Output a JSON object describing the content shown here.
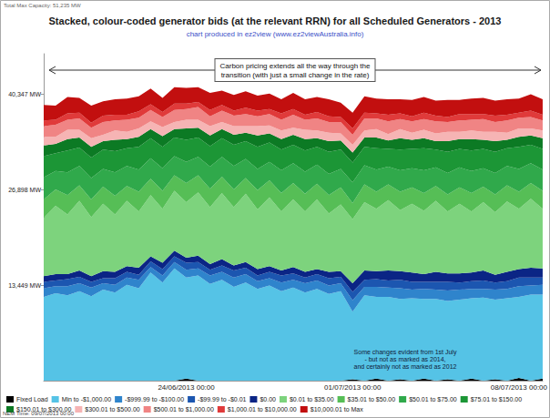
{
  "chart_data": {
    "type": "area",
    "title": "Stacked, colour-coded generator bids (at the relevant RRN) for all Scheduled Generators - 2013",
    "subtitle": "chart produced in ez2view (www.ez2viewAustralia.info)",
    "capacity_note": "Total Max Capacity: 51,235 MW",
    "carbon_note": "Carbon pricing extends all the way through the\ntransition (with just a small change in the rate)",
    "july_note": "Some changes evident from 1st July\n- but not as marked as 2014,\nand certainly not as marked as 2012",
    "time_note": "NEM Time: 09/07/2013 00:00",
    "stacked": true,
    "grid": false,
    "legend": "bottom",
    "ylim": [
      0,
      46000
    ],
    "yticks": [
      {
        "value": 13449,
        "label": "13,449 MW"
      },
      {
        "value": 26898,
        "label": "26,898 MW"
      },
      {
        "value": 40347,
        "label": "40,347 MW"
      }
    ],
    "categories": [
      null,
      null,
      null,
      null,
      null,
      null,
      null,
      null,
      null,
      null,
      null,
      null,
      "24/06/2013 00:00",
      null,
      null,
      null,
      null,
      null,
      null,
      null,
      null,
      null,
      null,
      null,
      null,
      null,
      "01/07/2013 00:00",
      null,
      null,
      null,
      null,
      null,
      null,
      null,
      null,
      null,
      null,
      null,
      null,
      null,
      "08/07/2013 00:00",
      null,
      null
    ],
    "series": [
      {
        "name": "Fixed Load",
        "color": "#000000",
        "values": [
          0,
          0,
          0,
          0,
          0,
          0,
          0,
          0,
          0,
          0,
          0,
          0,
          300,
          0,
          0,
          0,
          0,
          0,
          0,
          0,
          0,
          0,
          0,
          0,
          0,
          0,
          200,
          0,
          300,
          0,
          200,
          0,
          300,
          0,
          200,
          0,
          300,
          0,
          200,
          0,
          400,
          0,
          300
        ]
      },
      {
        "name": "Min to -$1,000.00",
        "color": "#55c3e6",
        "values": [
          11800,
          12300,
          12000,
          12600,
          11900,
          12800,
          12400,
          13500,
          13000,
          15200,
          13800,
          15800,
          14200,
          14800,
          13600,
          14200,
          13200,
          13800,
          12900,
          13400,
          12600,
          13100,
          12400,
          12900,
          12200,
          12600,
          9500,
          12000,
          11500,
          11800,
          11300,
          11600,
          11200,
          11500,
          11000,
          11400,
          11300,
          11700,
          11200,
          11600,
          11400,
          12100,
          11800
        ]
      },
      {
        "name": "-$999.99 to -$100.00",
        "color": "#2f84cc",
        "values": [
          1200,
          1000,
          1300,
          1100,
          1200,
          900,
          1100,
          1000,
          1200,
          800,
          1000,
          900,
          1100,
          1000,
          1200,
          1100,
          1300,
          1200,
          1100,
          1000,
          1200,
          1100,
          1300,
          1200,
          1200,
          1100,
          1600,
          1200,
          1400,
          1300,
          1500,
          1200,
          1400,
          1300,
          1500,
          1400,
          1300,
          1200,
          1400,
          1300,
          1500,
          1300,
          1400
        ]
      },
      {
        "name": "-$99.99 to -$0.01",
        "color": "#1c56b0",
        "values": [
          900,
          800,
          1000,
          900,
          800,
          700,
          900,
          800,
          700,
          800,
          900,
          800,
          1000,
          900,
          800,
          900,
          1000,
          900,
          800,
          900,
          1000,
          900,
          800,
          900,
          1000,
          900,
          1200,
          1000,
          1100,
          1000,
          1200,
          1100,
          1000,
          1100,
          1200,
          1000,
          1100,
          1200,
          1000,
          1100,
          1200,
          1100,
          1000
        ]
      },
      {
        "name": "$0.00",
        "color": "#0b2585",
        "values": [
          800,
          900,
          700,
          900,
          800,
          1000,
          900,
          800,
          1000,
          700,
          900,
          800,
          700,
          900,
          800,
          900,
          700,
          800,
          900,
          800,
          700,
          900,
          800,
          700,
          900,
          800,
          1200,
          1300,
          1100,
          1400,
          1200,
          1300,
          1100,
          1400,
          1200,
          1300,
          1200,
          1400,
          1100,
          1300,
          1200,
          1400,
          1300
        ]
      },
      {
        "name": "$0.01 to $35.00",
        "color": "#7dd37d",
        "values": [
          8200,
          9600,
          8400,
          9800,
          8300,
          9500,
          8100,
          9200,
          7900,
          8600,
          7600,
          8400,
          7800,
          8900,
          8000,
          9300,
          8200,
          9600,
          8400,
          9700,
          8300,
          9500,
          8500,
          9800,
          8200,
          9400,
          9000,
          9600,
          8800,
          9900,
          8600,
          9700,
          8900,
          10000,
          8700,
          9800,
          8600,
          9600,
          8800,
          9900,
          8500,
          9700,
          8400
        ]
      },
      {
        "name": "$35.01 to $50.00",
        "color": "#56be56",
        "values": [
          2600,
          2300,
          2700,
          2200,
          2500,
          2400,
          2600,
          2100,
          2800,
          2300,
          2500,
          2200,
          2700,
          2400,
          2600,
          2300,
          2500,
          2200,
          2700,
          2400,
          2600,
          2300,
          2500,
          2200,
          2600,
          2400,
          2300,
          2500,
          2400,
          2200,
          2600,
          2300,
          2500,
          2100,
          2400,
          2300,
          2600,
          2200,
          2500,
          2300,
          2400,
          2200,
          2500
        ]
      },
      {
        "name": "$50.01 to $75.00",
        "color": "#30a94b",
        "values": [
          3100,
          2600,
          3200,
          2700,
          3000,
          2500,
          3300,
          2800,
          3100,
          2900,
          3200,
          2700,
          3000,
          2600,
          3100,
          2800,
          3300,
          2700,
          3000,
          2600,
          3200,
          2800,
          3100,
          2700,
          3000,
          2600,
          2900,
          2700,
          3100,
          2500,
          3000,
          2700,
          3200,
          2600,
          3000,
          2800,
          3100,
          2600,
          3000,
          2700,
          3200,
          2800,
          3000
        ]
      },
      {
        "name": "$75.01 to $150.00",
        "color": "#1c9636",
        "values": [
          3000,
          2500,
          3100,
          2600,
          2900,
          2700,
          3000,
          2500,
          3200,
          2800,
          3000,
          2600,
          3100,
          2700,
          2900,
          2600,
          3000,
          2500,
          3100,
          2700,
          2900,
          2600,
          3000,
          2500,
          3100,
          2700,
          2800,
          2600,
          3000,
          2500,
          2900,
          2700,
          3100,
          2500,
          3000,
          2600,
          2900,
          2700,
          3000,
          2500,
          3100,
          2600,
          2900
        ]
      },
      {
        "name": "$150.01 to $300.00",
        "color": "#0c7a24",
        "values": [
          1500,
          1300,
          1600,
          1400,
          1500,
          1200,
          1600,
          1300,
          1400,
          1300,
          1500,
          1200,
          1600,
          1400,
          1500,
          1300,
          1400,
          1200,
          1600,
          1300,
          1500,
          1400,
          1600,
          1200,
          1500,
          1300,
          1400,
          1300,
          1500,
          1200,
          1600,
          1300,
          1400,
          1200,
          1500,
          1400,
          1600,
          1300,
          1500,
          1200,
          1400,
          1300,
          1500
        ]
      },
      {
        "name": "$300.01 to $500.00",
        "color": "#f6b4b4",
        "values": [
          1200,
          1000,
          1300,
          1100,
          1200,
          900,
          1300,
          1000,
          1200,
          1100,
          1300,
          1000,
          1200,
          1100,
          1300,
          1000,
          1200,
          900,
          1300,
          1100,
          1200,
          1000,
          1300,
          1100,
          1200,
          1000,
          1100,
          1000,
          1200,
          900,
          1300,
          1000,
          1200,
          1100,
          1300,
          1000,
          1200,
          1100,
          1300,
          1000,
          1200,
          1000,
          1100
        ]
      },
      {
        "name": "$500.01 to $1,000.00",
        "color": "#f08484",
        "values": [
          1500,
          1700,
          1400,
          1600,
          1500,
          1800,
          1400,
          1700,
          1500,
          1600,
          1400,
          1700,
          1500,
          1800,
          1400,
          1600,
          1500,
          1700,
          1400,
          1600,
          1500,
          1800,
          1400,
          1700,
          1500,
          1600,
          1400,
          1700,
          1500,
          1800,
          1400,
          1600,
          1500,
          1700,
          1400,
          1600,
          1500,
          1800,
          1400,
          1700,
          1500,
          1600,
          1400
        ]
      },
      {
        "name": "$1,000.01 to $10,000.00",
        "color": "#e03a3a",
        "values": [
          800,
          700,
          900,
          800,
          700,
          900,
          800,
          700,
          900,
          800,
          700,
          900,
          800,
          700,
          900,
          800,
          700,
          900,
          800,
          700,
          900,
          800,
          700,
          900,
          800,
          700,
          900,
          800,
          700,
          900,
          800,
          700,
          900,
          800,
          700,
          900,
          800,
          700,
          900,
          800,
          700,
          900,
          800
        ]
      },
      {
        "name": "$10,000.01 to Max",
        "color": "#c20f0f",
        "values": [
          2200,
          2000,
          2300,
          2100,
          2400,
          2000,
          2200,
          2300,
          2100,
          2200,
          2000,
          2300,
          2200,
          2100,
          2400,
          2000,
          2200,
          2300,
          2100,
          2200,
          2000,
          2300,
          2200,
          2100,
          2400,
          2000,
          2200,
          2300,
          2100,
          2200,
          2000,
          2300,
          2200,
          2100,
          2400,
          2000,
          2200,
          2300,
          2100,
          2200,
          2000,
          2300,
          2200
        ]
      }
    ]
  }
}
